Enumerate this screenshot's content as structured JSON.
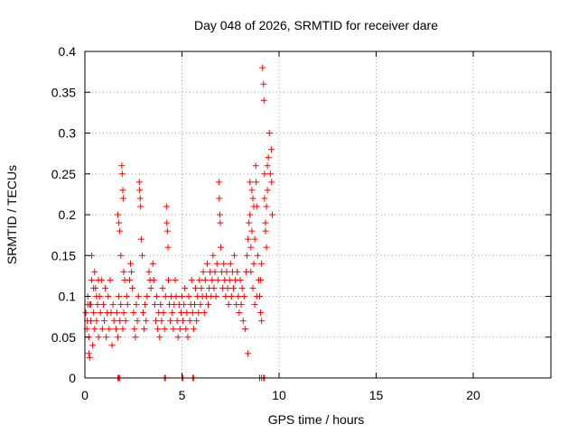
{
  "chart_data": {
    "type": "scatter",
    "title": "Day 048 of 2026, SRMTID for receiver dare",
    "xlabel": "GPS time / hours",
    "ylabel": "SRMTID / TECUs",
    "xlim": [
      0,
      24
    ],
    "ylim": [
      0,
      0.4
    ],
    "xticks": [
      0,
      5,
      10,
      15,
      20
    ],
    "xtick_labels": [
      "0",
      "5",
      "10",
      "15",
      "20"
    ],
    "yticks": [
      0,
      0.05,
      0.1,
      0.15,
      0.2,
      0.25,
      0.3,
      0.35,
      0.4
    ],
    "ytick_labels": [
      "0",
      "0.05",
      "0.1",
      "0.15",
      "0.2",
      "0.25",
      "0.3",
      "0.35",
      "0.4"
    ],
    "grid": true,
    "marker": "plus",
    "color": "#ff0000",
    "series": [
      {
        "name": "SRMTID",
        "points": [
          [
            0.05,
            0.08
          ],
          [
            0.1,
            0.06
          ],
          [
            0.15,
            0.1
          ],
          [
            0.2,
            0.05
          ],
          [
            0.25,
            0.09
          ],
          [
            0.3,
            0.07
          ],
          [
            0.35,
            0.12
          ],
          [
            0.4,
            0.04
          ],
          [
            0.45,
            0.08
          ],
          [
            0.5,
            0.06
          ],
          [
            0.55,
            0.11
          ],
          [
            0.6,
            0.07
          ],
          [
            0.65,
            0.09
          ],
          [
            0.7,
            0.05
          ],
          [
            0.75,
            0.1
          ],
          [
            0.8,
            0.08
          ],
          [
            0.85,
            0.12
          ],
          [
            0.9,
            0.06
          ],
          [
            0.95,
            0.09
          ],
          [
            1.0,
            0.07
          ],
          [
            1.05,
            0.11
          ],
          [
            1.1,
            0.05
          ],
          [
            1.15,
            0.08
          ],
          [
            1.2,
            0.1
          ],
          [
            1.25,
            0.06
          ],
          [
            1.3,
            0.12
          ],
          [
            1.35,
            0.08
          ],
          [
            1.4,
            0.04
          ],
          [
            1.45,
            0.09
          ],
          [
            1.5,
            0.07
          ],
          [
            0.2,
            0.03
          ],
          [
            0.25,
            0.025
          ],
          [
            0.3,
            0.09
          ],
          [
            0.35,
            0.15
          ],
          [
            0.5,
            0.13
          ],
          [
            0.6,
            0.1
          ],
          [
            0.7,
            0.12
          ],
          [
            0.15,
            0.09
          ],
          [
            0.12,
            0.07
          ],
          [
            0.45,
            0.11
          ],
          [
            1.7,
            0.2
          ],
          [
            1.75,
            0.19
          ],
          [
            1.8,
            0.18
          ],
          [
            1.85,
            0.15
          ],
          [
            1.9,
            0.26
          ],
          [
            1.92,
            0.25
          ],
          [
            1.95,
            0.23
          ],
          [
            1.97,
            0.22
          ],
          [
            2.0,
            0.13
          ],
          [
            2.05,
            0.12
          ],
          [
            1.6,
            0.06
          ],
          [
            1.65,
            0.08
          ],
          [
            1.7,
            0.05
          ],
          [
            1.75,
            0.1
          ],
          [
            1.8,
            0.07
          ],
          [
            1.85,
            0.09
          ],
          [
            1.95,
            0.06
          ],
          [
            2.0,
            0.08
          ],
          [
            2.1,
            0.07
          ],
          [
            2.15,
            0.1
          ],
          [
            2.2,
            0.09
          ],
          [
            2.3,
            0.12
          ],
          [
            2.35,
            0.14
          ],
          [
            2.4,
            0.13
          ],
          [
            2.45,
            0.11
          ],
          [
            2.5,
            0.08
          ],
          [
            2.55,
            0.06
          ],
          [
            2.6,
            0.05
          ],
          [
            2.65,
            0.09
          ],
          [
            2.7,
            0.07
          ],
          [
            2.75,
            0.1
          ],
          [
            2.8,
            0.24
          ],
          [
            2.82,
            0.23
          ],
          [
            2.85,
            0.22
          ],
          [
            2.87,
            0.21
          ],
          [
            2.9,
            0.17
          ],
          [
            2.95,
            0.15
          ],
          [
            3.0,
            0.08
          ],
          [
            3.05,
            0.06
          ],
          [
            3.1,
            0.09
          ],
          [
            3.15,
            0.07
          ],
          [
            3.2,
            0.1
          ],
          [
            3.3,
            0.13
          ],
          [
            3.35,
            0.12
          ],
          [
            3.4,
            0.11
          ],
          [
            3.5,
            0.14
          ],
          [
            3.55,
            0.12
          ],
          [
            3.6,
            0.09
          ],
          [
            3.65,
            0.07
          ],
          [
            3.7,
            0.1
          ],
          [
            3.75,
            0.06
          ],
          [
            3.8,
            0.08
          ],
          [
            3.85,
            0.05
          ],
          [
            3.9,
            0.09
          ],
          [
            3.95,
            0.07
          ],
          [
            4.0,
            0.11
          ],
          [
            4.05,
            0.08
          ],
          [
            4.1,
            0.06
          ],
          [
            4.15,
            0.1
          ],
          [
            4.2,
            0.21
          ],
          [
            4.22,
            0.19
          ],
          [
            4.25,
            0.18
          ],
          [
            4.28,
            0.16
          ],
          [
            4.3,
            0.12
          ],
          [
            4.35,
            0.09
          ],
          [
            4.4,
            0.07
          ],
          [
            4.45,
            0.1
          ],
          [
            4.5,
            0.08
          ],
          [
            4.55,
            0.06
          ],
          [
            4.6,
            0.09
          ],
          [
            4.65,
            0.12
          ],
          [
            4.7,
            0.1
          ],
          [
            4.75,
            0.07
          ],
          [
            4.8,
            0.05
          ],
          [
            4.85,
            0.09
          ],
          [
            4.9,
            0.06
          ],
          [
            4.95,
            0.08
          ],
          [
            5.0,
            0.1
          ],
          [
            5.05,
            0.07
          ],
          [
            5.1,
            0.09
          ],
          [
            5.15,
            0.11
          ],
          [
            5.2,
            0.06
          ],
          [
            5.25,
            0.08
          ],
          [
            5.3,
            0.05
          ],
          [
            5.35,
            0.1
          ],
          [
            5.4,
            0.07
          ],
          [
            5.45,
            0.09
          ],
          [
            5.5,
            0.12
          ],
          [
            5.55,
            0.08
          ],
          [
            5.6,
            0.06
          ],
          [
            5.65,
            0.09
          ],
          [
            5.7,
            0.11
          ],
          [
            5.75,
            0.07
          ],
          [
            5.8,
            0.1
          ],
          [
            5.85,
            0.08
          ],
          [
            5.9,
            0.12
          ],
          [
            5.95,
            0.09
          ],
          [
            6.0,
            0.11
          ],
          [
            6.05,
            0.1
          ],
          [
            6.1,
            0.13
          ],
          [
            6.15,
            0.08
          ],
          [
            6.2,
            0.12
          ],
          [
            6.25,
            0.1
          ],
          [
            6.3,
            0.14
          ],
          [
            6.35,
            0.09
          ],
          [
            6.4,
            0.11
          ],
          [
            6.45,
            0.13
          ],
          [
            6.5,
            0.1
          ],
          [
            6.55,
            0.12
          ],
          [
            6.6,
            0.15
          ],
          [
            6.65,
            0.11
          ],
          [
            6.7,
            0.13
          ],
          [
            6.75,
            0.1
          ],
          [
            6.8,
            0.14
          ],
          [
            6.85,
            0.12
          ],
          [
            6.9,
            0.24
          ],
          [
            6.92,
            0.22
          ],
          [
            6.95,
            0.2
          ],
          [
            6.97,
            0.19
          ],
          [
            7.0,
            0.16
          ],
          [
            7.05,
            0.13
          ],
          [
            7.1,
            0.11
          ],
          [
            7.15,
            0.14
          ],
          [
            7.2,
            0.12
          ],
          [
            7.25,
            0.1
          ],
          [
            7.3,
            0.13
          ],
          [
            7.35,
            0.11
          ],
          [
            7.4,
            0.09
          ],
          [
            7.45,
            0.12
          ],
          [
            7.5,
            0.14
          ],
          [
            7.55,
            0.1
          ],
          [
            7.6,
            0.13
          ],
          [
            7.65,
            0.11
          ],
          [
            7.7,
            0.15
          ],
          [
            7.75,
            0.12
          ],
          [
            7.8,
            0.09
          ],
          [
            7.85,
            0.13
          ],
          [
            7.9,
            0.1
          ],
          [
            7.95,
            0.08
          ],
          [
            8.0,
            0.12
          ],
          [
            8.05,
            0.09
          ],
          [
            8.1,
            0.11
          ],
          [
            8.15,
            0.07
          ],
          [
            8.2,
            0.1
          ],
          [
            8.25,
            0.06
          ],
          [
            8.3,
            0.13
          ],
          [
            8.35,
            0.15
          ],
          [
            8.4,
            0.17
          ],
          [
            8.45,
            0.19
          ],
          [
            8.5,
            0.2
          ],
          [
            8.55,
            0.16
          ],
          [
            8.6,
            0.18
          ],
          [
            8.65,
            0.22
          ],
          [
            8.7,
            0.14
          ],
          [
            8.75,
            0.17
          ],
          [
            8.8,
            0.26
          ],
          [
            8.82,
            0.24
          ],
          [
            8.85,
            0.21
          ],
          [
            8.9,
            0.15
          ],
          [
            8.95,
            0.12
          ],
          [
            9.0,
            0.1
          ],
          [
            9.05,
            0.08
          ],
          [
            9.1,
            0.14
          ],
          [
            9.15,
            0.38
          ],
          [
            9.2,
            0.36
          ],
          [
            9.22,
            0.34
          ],
          [
            9.25,
            0.22
          ],
          [
            9.3,
            0.19
          ],
          [
            9.35,
            0.16
          ],
          [
            9.4,
            0.26
          ],
          [
            9.45,
            0.27
          ],
          [
            9.5,
            0.3
          ],
          [
            9.55,
            0.25
          ],
          [
            9.6,
            0.28
          ],
          [
            9.62,
            0.24
          ],
          [
            9.65,
            0.2
          ],
          [
            9.4,
            0.23
          ],
          [
            9.35,
            0.21
          ],
          [
            9.3,
            0.18
          ],
          [
            9.25,
            0.25
          ],
          [
            8.4,
            0.03
          ],
          [
            8.5,
            0.24
          ],
          [
            8.6,
            0.23
          ],
          [
            8.7,
            0.21
          ],
          [
            8.55,
            0.13
          ],
          [
            8.65,
            0.11
          ],
          [
            8.75,
            0.09
          ],
          [
            8.85,
            0.1
          ],
          [
            9.05,
            0.12
          ],
          [
            9.1,
            0.07
          ],
          [
            1.7,
            0.0
          ],
          [
            1.75,
            0.0
          ],
          [
            1.8,
            0.0
          ],
          [
            4.1,
            0.0
          ],
          [
            4.15,
            0.0
          ],
          [
            5.0,
            0.0
          ],
          [
            5.05,
            0.0
          ],
          [
            5.55,
            0.0
          ],
          [
            5.6,
            0.0
          ],
          [
            9.0,
            0.0
          ],
          [
            9.1,
            0.0
          ],
          [
            9.2,
            0.0
          ],
          [
            9.25,
            0.0
          ]
        ]
      }
    ]
  }
}
